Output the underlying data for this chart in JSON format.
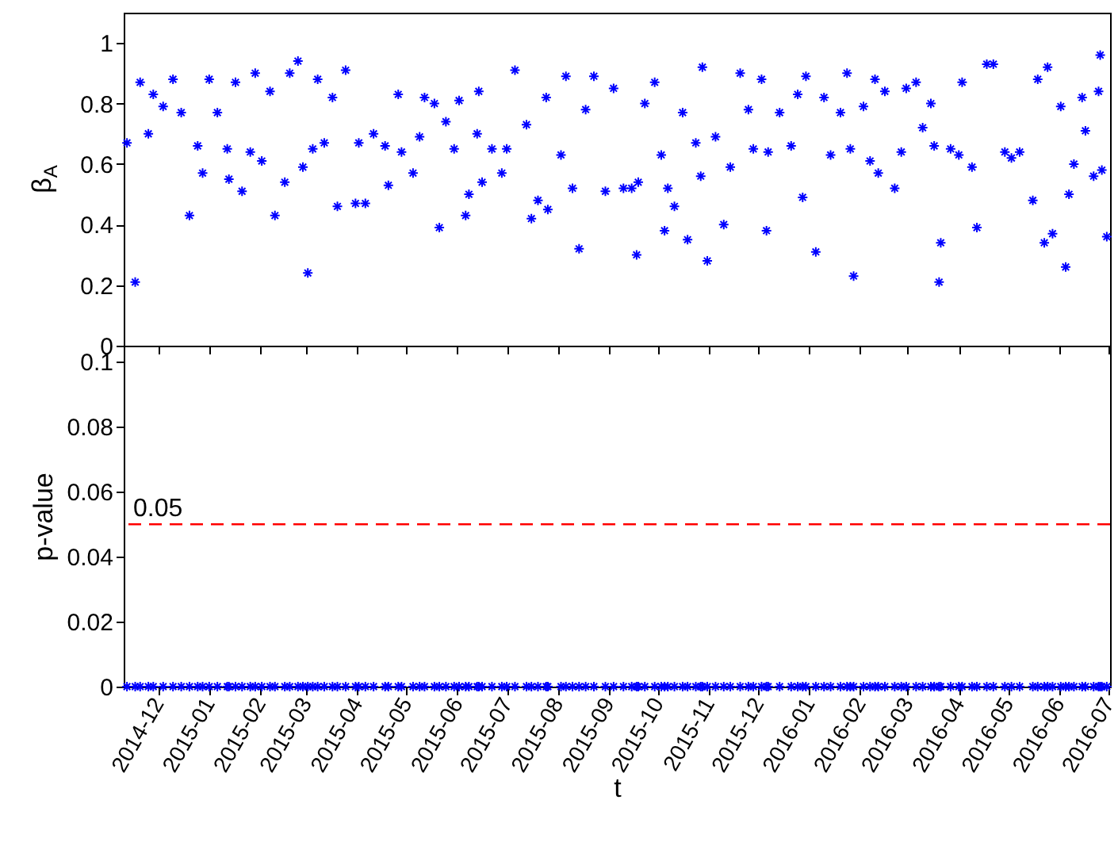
{
  "chart_data": [
    {
      "type": "scatter",
      "ylabel": "β$_{A}$",
      "color": "#0000ff",
      "marker": "cross",
      "tick_labels": "y",
      "xlim": [
        "2014-11-10",
        "2016-07-02"
      ],
      "xticks": [
        "2014-12",
        "2015-01",
        "2015-02",
        "2015-03",
        "2015-04",
        "2015-05",
        "2015-06",
        "2015-07",
        "2015-08",
        "2015-09",
        "2015-10",
        "2015-11",
        "2015-12",
        "2016-01",
        "2016-02",
        "2016-03",
        "2016-04",
        "2016-05",
        "2016-06",
        "2016-07"
      ],
      "ylim": [
        0,
        1.1
      ],
      "yticks": [
        0,
        0.2,
        0.4,
        0.6,
        0.8,
        1
      ],
      "x": [
        "2014-11-12",
        "2014-11-17",
        "2014-11-20",
        "2014-11-25",
        "2014-11-28",
        "2014-12-04",
        "2014-12-10",
        "2014-12-15",
        "2014-12-20",
        "2014-12-25",
        "2014-12-28",
        "2015-01-01",
        "2015-01-06",
        "2015-01-12",
        "2015-01-13",
        "2015-01-17",
        "2015-01-21",
        "2015-01-26",
        "2015-01-29",
        "2015-02-02",
        "2015-02-07",
        "2015-02-10",
        "2015-02-16",
        "2015-02-19",
        "2015-02-24",
        "2015-02-27",
        "2015-03-02",
        "2015-03-05",
        "2015-03-08",
        "2015-03-12",
        "2015-03-17",
        "2015-03-20",
        "2015-03-25",
        "2015-03-31",
        "2015-04-02",
        "2015-04-06",
        "2015-04-11",
        "2015-04-18",
        "2015-04-20",
        "2015-04-26",
        "2015-04-28",
        "2015-05-05",
        "2015-05-09",
        "2015-05-12",
        "2015-05-18",
        "2015-05-21",
        "2015-05-25",
        "2015-05-30",
        "2015-06-02",
        "2015-06-06",
        "2015-06-08",
        "2015-06-13",
        "2015-06-14",
        "2015-06-16",
        "2015-06-22",
        "2015-06-28",
        "2015-07-01",
        "2015-07-06",
        "2015-07-13",
        "2015-07-16",
        "2015-07-20",
        "2015-07-25",
        "2015-07-26",
        "2015-08-03",
        "2015-08-06",
        "2015-08-10",
        "2015-08-14",
        "2015-08-18",
        "2015-08-23",
        "2015-08-30",
        "2015-09-04",
        "2015-09-10",
        "2015-09-15",
        "2015-09-18",
        "2015-09-19",
        "2015-09-23",
        "2015-09-29",
        "2015-10-03",
        "2015-10-05",
        "2015-10-07",
        "2015-10-11",
        "2015-10-16",
        "2015-10-19",
        "2015-10-24",
        "2015-10-27",
        "2015-10-28",
        "2015-10-31",
        "2015-11-05",
        "2015-11-10",
        "2015-11-14",
        "2015-11-20",
        "2015-11-25",
        "2015-11-28",
        "2015-12-03",
        "2015-12-06",
        "2015-12-07",
        "2015-12-14",
        "2015-12-21",
        "2015-12-25",
        "2015-12-28",
        "2015-12-30",
        "2016-01-05",
        "2016-01-10",
        "2016-01-14",
        "2016-01-20",
        "2016-01-24",
        "2016-01-26",
        "2016-01-28",
        "2016-02-03",
        "2016-02-07",
        "2016-02-10",
        "2016-02-12",
        "2016-02-16",
        "2016-02-22",
        "2016-02-26",
        "2016-02-29",
        "2016-03-06",
        "2016-03-10",
        "2016-03-15",
        "2016-03-17",
        "2016-03-20",
        "2016-03-21",
        "2016-03-27",
        "2016-04-01",
        "2016-04-03",
        "2016-04-09",
        "2016-04-12",
        "2016-04-18",
        "2016-04-22",
        "2016-04-29",
        "2016-05-03",
        "2016-05-08",
        "2016-05-16",
        "2016-05-19",
        "2016-05-23",
        "2016-05-25",
        "2016-05-28",
        "2016-06-02",
        "2016-06-05",
        "2016-06-07",
        "2016-06-10",
        "2016-06-15",
        "2016-06-17",
        "2016-06-22",
        "2016-06-25",
        "2016-06-26",
        "2016-06-27",
        "2016-06-30"
      ],
      "values": [
        0.67,
        0.21,
        0.87,
        0.7,
        0.83,
        0.79,
        0.88,
        0.77,
        0.43,
        0.66,
        0.57,
        0.88,
        0.77,
        0.65,
        0.55,
        0.87,
        0.51,
        0.64,
        0.9,
        0.61,
        0.84,
        0.43,
        0.54,
        0.9,
        0.94,
        0.59,
        0.24,
        0.65,
        0.88,
        0.67,
        0.82,
        0.46,
        0.91,
        0.47,
        0.67,
        0.47,
        0.7,
        0.66,
        0.53,
        0.83,
        0.64,
        0.57,
        0.69,
        0.82,
        0.8,
        0.39,
        0.74,
        0.65,
        0.81,
        0.43,
        0.5,
        0.7,
        0.84,
        0.54,
        0.65,
        0.57,
        0.65,
        0.91,
        0.73,
        0.42,
        0.48,
        0.82,
        0.45,
        0.63,
        0.89,
        0.52,
        0.32,
        0.78,
        0.89,
        0.51,
        0.85,
        0.52,
        0.52,
        0.3,
        0.54,
        0.8,
        0.87,
        0.63,
        0.38,
        0.52,
        0.46,
        0.77,
        0.35,
        0.67,
        0.56,
        0.92,
        0.28,
        0.69,
        0.4,
        0.59,
        0.9,
        0.78,
        0.65,
        0.88,
        0.38,
        0.64,
        0.77,
        0.66,
        0.83,
        0.49,
        0.89,
        0.31,
        0.82,
        0.63,
        0.77,
        0.9,
        0.65,
        0.23,
        0.79,
        0.61,
        0.88,
        0.57,
        0.84,
        0.52,
        0.64,
        0.85,
        0.87,
        0.72,
        0.8,
        0.66,
        0.21,
        0.34,
        0.65,
        0.63,
        0.87,
        0.59,
        0.39,
        0.93,
        0.93,
        0.64,
        0.62,
        0.64,
        0.48,
        0.88,
        0.34,
        0.92,
        0.37,
        0.79,
        0.26,
        0.5,
        0.6,
        0.82,
        0.71,
        0.56,
        0.84,
        0.96,
        0.58,
        0.36
      ]
    },
    {
      "type": "scatter",
      "ylabel": "p-value",
      "xlabel": "t",
      "color": "#0000ff",
      "marker": "cross",
      "xlim": [
        "2014-11-10",
        "2016-07-02"
      ],
      "xticks": [
        "2014-12",
        "2015-01",
        "2015-02",
        "2015-03",
        "2015-04",
        "2015-05",
        "2015-06",
        "2015-07",
        "2015-08",
        "2015-09",
        "2015-10",
        "2015-11",
        "2015-12",
        "2016-01",
        "2016-02",
        "2016-03",
        "2016-04",
        "2016-05",
        "2016-06",
        "2016-07"
      ],
      "ylim": [
        0,
        0.105
      ],
      "yticks": [
        0,
        0.02,
        0.04,
        0.06,
        0.08,
        0.1
      ],
      "ref_lines": [
        {
          "axis": "y",
          "value": 0.05,
          "label": "0.05",
          "color": "#ff0000",
          "line_style": "dashed"
        }
      ],
      "x": [
        "2014-11-12",
        "2014-11-17",
        "2014-11-20",
        "2014-11-25",
        "2014-11-28",
        "2014-12-04",
        "2014-12-10",
        "2014-12-15",
        "2014-12-20",
        "2014-12-25",
        "2014-12-28",
        "2015-01-01",
        "2015-01-06",
        "2015-01-12",
        "2015-01-13",
        "2015-01-17",
        "2015-01-21",
        "2015-01-26",
        "2015-01-29",
        "2015-02-02",
        "2015-02-07",
        "2015-02-10",
        "2015-02-16",
        "2015-02-19",
        "2015-02-24",
        "2015-02-27",
        "2015-03-02",
        "2015-03-05",
        "2015-03-08",
        "2015-03-12",
        "2015-03-17",
        "2015-03-20",
        "2015-03-25",
        "2015-03-31",
        "2015-04-02",
        "2015-04-06",
        "2015-04-11",
        "2015-04-18",
        "2015-04-20",
        "2015-04-26",
        "2015-04-28",
        "2015-05-05",
        "2015-05-09",
        "2015-05-12",
        "2015-05-18",
        "2015-05-21",
        "2015-05-25",
        "2015-05-30",
        "2015-06-02",
        "2015-06-06",
        "2015-06-08",
        "2015-06-13",
        "2015-06-14",
        "2015-06-16",
        "2015-06-22",
        "2015-06-28",
        "2015-07-01",
        "2015-07-06",
        "2015-07-13",
        "2015-07-16",
        "2015-07-20",
        "2015-07-25",
        "2015-07-26",
        "2015-08-03",
        "2015-08-06",
        "2015-08-10",
        "2015-08-14",
        "2015-08-18",
        "2015-08-23",
        "2015-08-30",
        "2015-09-04",
        "2015-09-10",
        "2015-09-15",
        "2015-09-18",
        "2015-09-19",
        "2015-09-23",
        "2015-09-29",
        "2015-10-03",
        "2015-10-05",
        "2015-10-07",
        "2015-10-11",
        "2015-10-16",
        "2015-10-19",
        "2015-10-24",
        "2015-10-27",
        "2015-10-28",
        "2015-10-31",
        "2015-11-05",
        "2015-11-10",
        "2015-11-14",
        "2015-11-20",
        "2015-11-25",
        "2015-11-28",
        "2015-12-03",
        "2015-12-06",
        "2015-12-07",
        "2015-12-14",
        "2015-12-21",
        "2015-12-25",
        "2015-12-28",
        "2015-12-30",
        "2016-01-05",
        "2016-01-10",
        "2016-01-14",
        "2016-01-20",
        "2016-01-24",
        "2016-01-26",
        "2016-01-28",
        "2016-02-03",
        "2016-02-07",
        "2016-02-10",
        "2016-02-12",
        "2016-02-16",
        "2016-02-22",
        "2016-02-26",
        "2016-02-29",
        "2016-03-06",
        "2016-03-10",
        "2016-03-15",
        "2016-03-17",
        "2016-03-20",
        "2016-03-21",
        "2016-03-27",
        "2016-04-01",
        "2016-04-03",
        "2016-04-09",
        "2016-04-12",
        "2016-04-18",
        "2016-04-22",
        "2016-04-29",
        "2016-05-03",
        "2016-05-08",
        "2016-05-16",
        "2016-05-19",
        "2016-05-23",
        "2016-05-25",
        "2016-05-28",
        "2016-06-02",
        "2016-06-05",
        "2016-06-07",
        "2016-06-10",
        "2016-06-15",
        "2016-06-17",
        "2016-06-22",
        "2016-06-25",
        "2016-06-26",
        "2016-06-27",
        "2016-06-30"
      ],
      "values": [
        0,
        0,
        0,
        0,
        0,
        0,
        0,
        0,
        0,
        0,
        0,
        0,
        0,
        0,
        0,
        0,
        0,
        0,
        0,
        0,
        0,
        0,
        0,
        0,
        0,
        0,
        0,
        0,
        0,
        0,
        0,
        0,
        0,
        0,
        0,
        0,
        0,
        0,
        0,
        0,
        0,
        0,
        0,
        0,
        0,
        0,
        0,
        0,
        0,
        0,
        0,
        0,
        0,
        0,
        0,
        0,
        0,
        0,
        0,
        0,
        0,
        0,
        0,
        0,
        0,
        0,
        0,
        0,
        0,
        0,
        0,
        0,
        0,
        0,
        0,
        0,
        0,
        0,
        0,
        0,
        0,
        0,
        0,
        0,
        0,
        0,
        0,
        0,
        0,
        0,
        0,
        0,
        0,
        0,
        0,
        0,
        0,
        0,
        0,
        0,
        0,
        0,
        0,
        0,
        0,
        0,
        0,
        0,
        0,
        0,
        0,
        0,
        0,
        0,
        0,
        0,
        0,
        0,
        0,
        0,
        0,
        0,
        0,
        0,
        0,
        0,
        0,
        0,
        0,
        0,
        0,
        0,
        0,
        0,
        0,
        0,
        0,
        0,
        0,
        0,
        0,
        0,
        0,
        0,
        0,
        0,
        0,
        0
      ]
    }
  ]
}
